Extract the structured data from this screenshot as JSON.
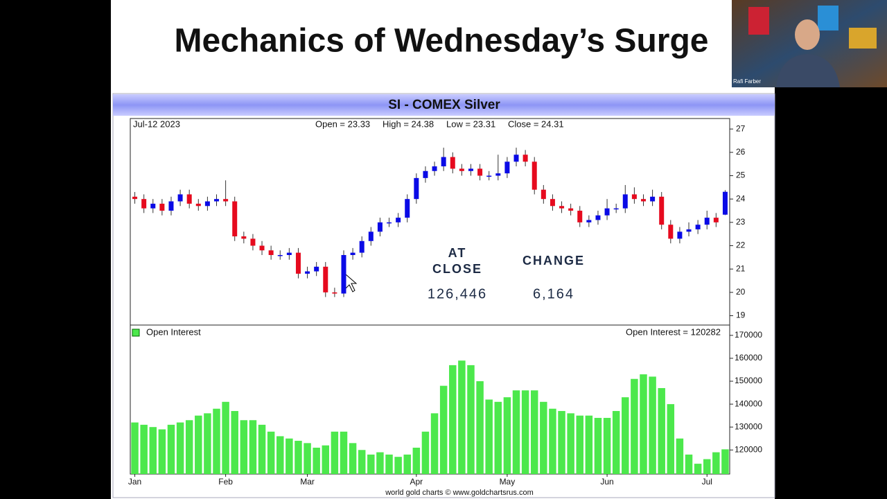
{
  "slide": {
    "title": "Mechanics of Wednesday’s Surge",
    "presenter": "Rafi Farber"
  },
  "chart_data": [
    {
      "type": "candlestick",
      "title": "SI  -  COMEX Silver",
      "date_label": "Jul-12  2023",
      "summary": [
        "Open = 23.33",
        "High = 24.38",
        "Low = 23.31",
        "Close = 24.31"
      ],
      "open": [
        24.1,
        24.0,
        23.6,
        23.8,
        23.5,
        23.9,
        24.2,
        23.8,
        23.7,
        23.9,
        24.0,
        23.9,
        22.4,
        22.3,
        22.0,
        21.8,
        21.6,
        21.6,
        21.7,
        20.8,
        20.9,
        21.1,
        20.0,
        19.95,
        21.6,
        21.7,
        22.2,
        22.6,
        23.0,
        23.0,
        23.2,
        24.0,
        24.9,
        25.2,
        25.4,
        25.8,
        25.3,
        25.2,
        25.3,
        25.0,
        25.0,
        25.1,
        25.6,
        25.9,
        25.6,
        24.4,
        24.0,
        23.7,
        23.6,
        23.5,
        23.0,
        23.1,
        23.3,
        23.6,
        23.6,
        24.2,
        24.0,
        23.9,
        24.1,
        22.9,
        22.3,
        22.6,
        22.7,
        22.9,
        23.2,
        23.33
      ],
      "high": [
        24.3,
        24.2,
        24.0,
        24.0,
        24.1,
        24.4,
        24.4,
        24.0,
        24.1,
        24.2,
        24.8,
        24.1,
        22.6,
        22.5,
        22.2,
        22.0,
        21.8,
        21.9,
        21.9,
        21.1,
        21.3,
        21.3,
        20.2,
        21.8,
        21.9,
        22.4,
        22.8,
        23.2,
        23.2,
        23.4,
        24.2,
        25.1,
        25.4,
        25.6,
        26.2,
        26.0,
        25.5,
        25.5,
        25.5,
        25.2,
        25.9,
        25.8,
        26.2,
        26.1,
        25.8,
        24.6,
        24.2,
        23.9,
        23.8,
        23.7,
        23.3,
        23.5,
        24.0,
        23.8,
        24.6,
        24.5,
        24.2,
        24.4,
        24.3,
        23.1,
        22.8,
        23.0,
        23.1,
        23.5,
        23.4,
        24.38
      ],
      "low": [
        23.8,
        23.4,
        23.4,
        23.3,
        23.3,
        23.7,
        23.6,
        23.5,
        23.5,
        23.7,
        23.7,
        22.2,
        22.1,
        21.8,
        21.6,
        21.4,
        21.4,
        21.4,
        20.6,
        20.6,
        20.7,
        19.8,
        19.8,
        19.8,
        21.4,
        21.5,
        22.0,
        22.4,
        22.8,
        22.8,
        23.0,
        23.8,
        24.7,
        25.0,
        25.2,
        25.1,
        25.0,
        25.0,
        24.8,
        24.8,
        24.8,
        24.9,
        25.4,
        25.4,
        24.2,
        23.8,
        23.5,
        23.4,
        23.3,
        22.8,
        22.8,
        22.9,
        23.1,
        23.4,
        23.4,
        23.8,
        23.7,
        23.7,
        22.7,
        22.1,
        22.1,
        22.4,
        22.5,
        22.7,
        22.8,
        23.31
      ],
      "close": [
        24.0,
        23.6,
        23.8,
        23.5,
        23.9,
        24.2,
        23.8,
        23.7,
        23.9,
        24.0,
        23.9,
        22.4,
        22.3,
        22.0,
        21.8,
        21.6,
        21.6,
        21.7,
        20.8,
        20.9,
        21.1,
        20.0,
        19.95,
        21.6,
        21.7,
        22.2,
        22.6,
        23.0,
        23.0,
        23.2,
        24.0,
        24.9,
        25.2,
        25.4,
        25.8,
        25.3,
        25.2,
        25.3,
        25.0,
        25.0,
        25.1,
        25.6,
        25.9,
        25.6,
        24.4,
        24.0,
        23.7,
        23.6,
        23.5,
        23.0,
        23.1,
        23.3,
        23.6,
        23.6,
        24.2,
        24.0,
        23.9,
        24.1,
        22.9,
        22.3,
        22.6,
        22.7,
        22.9,
        23.2,
        23.0,
        24.31
      ],
      "up_color": "#0a0ae6",
      "down_color": "#e60a1e",
      "ylim": [
        18.6,
        27.45
      ],
      "yticks": [
        19,
        20,
        21,
        22,
        23,
        24,
        25,
        26,
        27
      ],
      "annotations": {
        "at_close": [
          "AT",
          "CLOSE"
        ],
        "change": "CHANGE",
        "at_close_value": "126,446",
        "change_value": "6,164"
      }
    },
    {
      "type": "bar",
      "value_label": "Open Interest = 120282",
      "categories": [
        "Jan",
        null,
        null,
        null,
        null,
        null,
        null,
        null,
        null,
        null,
        "Feb",
        null,
        null,
        null,
        null,
        null,
        null,
        null,
        null,
        "Mar",
        null,
        null,
        null,
        null,
        null,
        null,
        null,
        null,
        null,
        null,
        null,
        "Apr",
        null,
        null,
        null,
        null,
        null,
        null,
        null,
        null,
        null,
        "May",
        null,
        null,
        null,
        null,
        null,
        null,
        null,
        null,
        null,
        null,
        "Jun",
        null,
        null,
        null,
        null,
        null,
        null,
        null,
        null,
        null,
        null,
        "Jul",
        null,
        null
      ],
      "series": [
        {
          "name": "Open Interest",
          "color": "#4ce84c",
          "values": [
            132000,
            131000,
            130000,
            129000,
            131000,
            132000,
            133000,
            135000,
            136000,
            138000,
            141000,
            137000,
            133000,
            133000,
            131000,
            128000,
            126000,
            125000,
            124000,
            123000,
            121000,
            122000,
            128000,
            128000,
            123000,
            120000,
            118000,
            119000,
            118000,
            117000,
            118000,
            121000,
            128000,
            136000,
            148000,
            157000,
            159000,
            157000,
            150000,
            142000,
            141000,
            143000,
            146000,
            146000,
            146000,
            141000,
            138000,
            137000,
            136000,
            135000,
            135000,
            134000,
            134000,
            137000,
            143000,
            151000,
            153000,
            152000,
            147000,
            140000,
            125000,
            118000,
            114000,
            116000,
            119000,
            120282
          ]
        }
      ],
      "ylim": [
        109500,
        174500
      ],
      "yticks": [
        120000,
        130000,
        140000,
        150000,
        160000,
        170000
      ],
      "source": "world gold charts © www.goldchartsrus.com"
    }
  ]
}
